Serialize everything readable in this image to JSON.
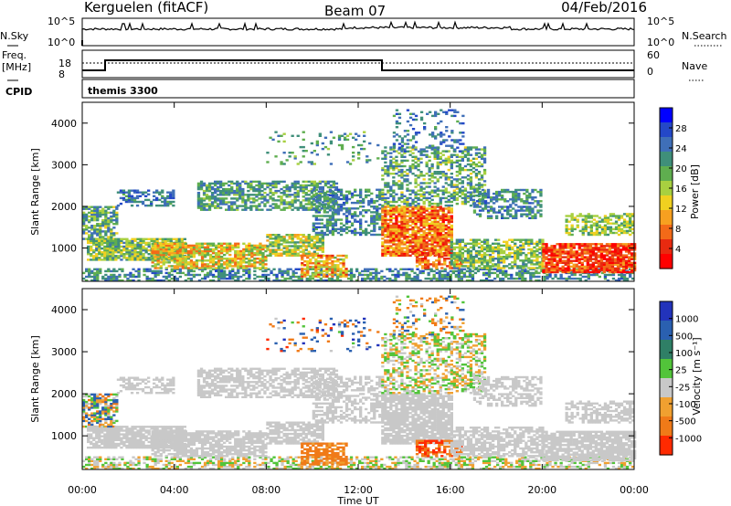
{
  "header": {
    "station": "Kerguelen (fitACF)",
    "beam": "Beam 07",
    "date": "04/Feb/2016"
  },
  "top_panels": {
    "nsky_label": "N.Sky",
    "nsky_ticks": [
      "10^5",
      "10^0"
    ],
    "nsearch_label": "N.Search",
    "nsearch_ticks": [
      "10^5",
      "10^0"
    ],
    "freq_label_1": "Freq.",
    "freq_label_2": "[MHz]",
    "freq_ticks": [
      "18",
      "8"
    ],
    "nave_label": "Nave",
    "nave_ticks": [
      "60",
      "0"
    ],
    "cpid_label": "CPID",
    "cpid_value": "themis 3300"
  },
  "chart_data": [
    {
      "type": "heatmap",
      "name": "power",
      "ylabel": "Slant Range [km]",
      "yticks": [
        "4000",
        "3000",
        "2000",
        "1000"
      ],
      "ylim": [
        200,
        4500
      ],
      "xlim_hours": [
        0,
        24
      ],
      "colorbar": {
        "label": "Power [dB]",
        "ticks": [
          "28",
          "24",
          "20",
          "16",
          "12",
          "8",
          "4"
        ],
        "range": [
          0,
          32
        ],
        "colors": [
          "#0000ff",
          "#2448c8",
          "#3f6fb8",
          "#3f8f7a",
          "#5fae4f",
          "#a8d040",
          "#f0d020",
          "#f7a020",
          "#f36a18",
          "#e82a10",
          "#ff0000"
        ]
      }
    },
    {
      "type": "heatmap",
      "name": "velocity",
      "ylabel": "Slant Range [km]",
      "yticks": [
        "4000",
        "3000",
        "2000",
        "1000"
      ],
      "ylim": [
        200,
        4500
      ],
      "xlim_hours": [
        0,
        24
      ],
      "colorbar": {
        "label": "Velocity  [m s⁻¹]",
        "ticks": [
          "1000",
          "500",
          "100",
          "25",
          "-25",
          "-100",
          "-500",
          "-1000"
        ],
        "colors": [
          "#2233bb",
          "#2a60b0",
          "#2f7f66",
          "#52c43a",
          "#c8c8c8",
          "#f0a030",
          "#f07a18",
          "#ff2a00"
        ]
      }
    }
  ],
  "xaxis": {
    "label": "Time UT",
    "ticks": [
      "00:00",
      "04:00",
      "08:00",
      "12:00",
      "16:00",
      "20:00",
      "00:00"
    ]
  }
}
